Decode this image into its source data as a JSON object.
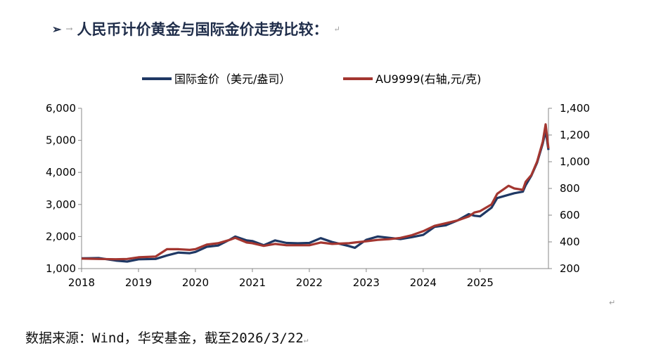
{
  "heading": {
    "bullet_icon": "arrow-bullet-icon",
    "text": "人民币计价黄金与国际金价走势比较：",
    "mark": "↵"
  },
  "source": {
    "text": "数据来源：Wind，华安基金，截至2026/3/22",
    "mark": "↵"
  },
  "end_mark": "↵",
  "chart_data": {
    "type": "line",
    "title": "",
    "legend_placement": "top-center",
    "grid": false,
    "x": {
      "range": [
        2018.0,
        2026.2
      ],
      "ticks": [
        2018,
        2019,
        2020,
        2021,
        2022,
        2023,
        2024,
        2025
      ],
      "tick_labels": [
        "2018",
        "2019",
        "2020",
        "2021",
        "2022",
        "2023",
        "2024",
        "2025"
      ]
    },
    "y_left": {
      "range": [
        1000,
        6000
      ],
      "ticks": [
        1000,
        2000,
        3000,
        4000,
        5000,
        6000
      ],
      "tick_labels": [
        "1,000",
        "2,000",
        "3,000",
        "4,000",
        "5,000",
        "6,000"
      ]
    },
    "y_right": {
      "range": [
        200,
        1400
      ],
      "ticks": [
        200,
        400,
        600,
        800,
        1000,
        1200,
        1400
      ],
      "tick_labels": [
        "200",
        "400",
        "600",
        "800",
        "1,000",
        "1,200",
        "1,400"
      ]
    },
    "series": [
      {
        "name": "国际金价（美元/盎司）",
        "axis": "left",
        "color": "#1f3864",
        "x": [
          2018.0,
          2018.3,
          2018.6,
          2018.8,
          2019.0,
          2019.3,
          2019.5,
          2019.7,
          2019.9,
          2020.0,
          2020.2,
          2020.4,
          2020.6,
          2020.7,
          2020.9,
          2021.0,
          2021.2,
          2021.4,
          2021.6,
          2021.8,
          2022.0,
          2022.2,
          2022.4,
          2022.7,
          2022.8,
          2023.0,
          2023.2,
          2023.4,
          2023.6,
          2023.8,
          2024.0,
          2024.2,
          2024.4,
          2024.6,
          2024.8,
          2024.9,
          2025.0,
          2025.2,
          2025.3,
          2025.5,
          2025.6,
          2025.75,
          2025.8,
          2025.9,
          2026.0,
          2026.1,
          2026.15,
          2026.2
        ],
        "values": [
          1320,
          1330,
          1250,
          1220,
          1290,
          1300,
          1410,
          1500,
          1480,
          1520,
          1680,
          1720,
          1900,
          2000,
          1880,
          1860,
          1730,
          1880,
          1800,
          1790,
          1800,
          1950,
          1830,
          1700,
          1650,
          1900,
          2000,
          1960,
          1920,
          1980,
          2050,
          2300,
          2350,
          2500,
          2700,
          2650,
          2630,
          2900,
          3200,
          3300,
          3350,
          3400,
          3600,
          3900,
          4300,
          4900,
          5300,
          4700
        ]
      },
      {
        "name": "AU9999(右轴,元/克)",
        "axis": "right",
        "color": "#a33630",
        "x": [
          2018.0,
          2018.3,
          2018.6,
          2018.8,
          2019.0,
          2019.3,
          2019.5,
          2019.7,
          2019.9,
          2020.0,
          2020.2,
          2020.4,
          2020.6,
          2020.7,
          2020.9,
          2021.0,
          2021.2,
          2021.4,
          2021.6,
          2021.8,
          2022.0,
          2022.2,
          2022.4,
          2022.7,
          2022.8,
          2023.0,
          2023.2,
          2023.4,
          2023.6,
          2023.8,
          2024.0,
          2024.2,
          2024.4,
          2024.6,
          2024.8,
          2024.9,
          2025.0,
          2025.2,
          2025.3,
          2025.5,
          2025.6,
          2025.75,
          2025.8,
          2025.9,
          2026.0,
          2026.1,
          2026.15,
          2026.2
        ],
        "values": [
          275,
          272,
          270,
          272,
          285,
          290,
          345,
          345,
          340,
          345,
          380,
          390,
          415,
          430,
          395,
          390,
          370,
          385,
          375,
          375,
          375,
          395,
          385,
          390,
          395,
          405,
          415,
          420,
          430,
          450,
          480,
          520,
          540,
          560,
          590,
          620,
          630,
          680,
          760,
          820,
          800,
          790,
          850,
          900,
          1000,
          1150,
          1280,
          1100
        ]
      }
    ]
  }
}
